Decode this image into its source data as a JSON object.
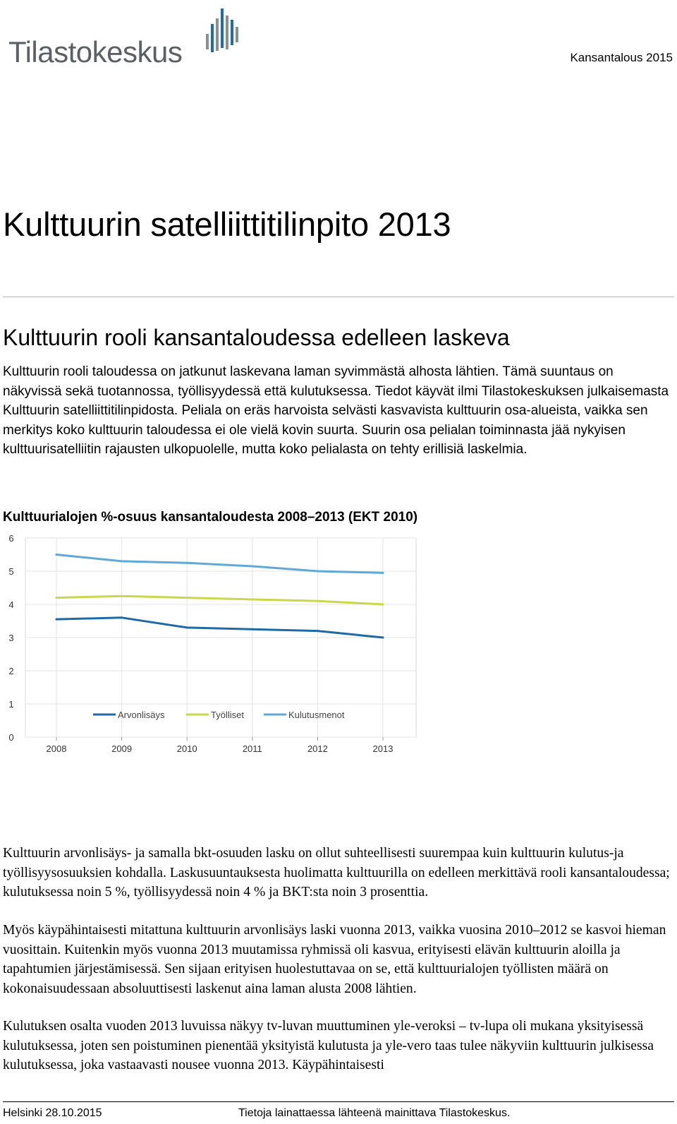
{
  "logo": {
    "text": "Tilastokeskus"
  },
  "header": {
    "series": "Kansantalous 2015"
  },
  "title": "Kulttuurin satelliittitilinpito 2013",
  "section_heading": "Kulttuurin rooli kansantaloudessa edelleen laskeva",
  "lead": "Kulttuurin rooli taloudessa on jatkunut laskevana laman syvimmästä alhosta lähtien. Tämä suuntaus on näkyvissä sekä tuotannossa, työllisyydessä että kulutuksessa. Tiedot käyvät ilmi Tilastokeskuksen julkaisemasta Kulttuurin satelliittitilinpidosta. Peliala on eräs harvoista selvästi kasvavista kulttuurin osa-alueista, vaikka sen merkitys koko kulttuurin taloudessa ei ole vielä kovin suurta. Suurin osa pelialan toiminnasta jää nykyisen kulttuurisatelliitin rajausten ulkopuolelle, mutta koko pelialasta on tehty erillisiä laskelmia.",
  "chart_title": "Kulttuurialojen %-osuus kansantaloudesta 2008–2013 (EKT 2010)",
  "chart_data": {
    "type": "line",
    "categories": [
      "2008",
      "2009",
      "2010",
      "2011",
      "2012",
      "2013"
    ],
    "ylim": [
      0,
      6
    ],
    "yticks": [
      "0",
      "1",
      "2",
      "3",
      "4",
      "5",
      "6"
    ],
    "grid": true,
    "legend_position": "bottom-left",
    "series": [
      {
        "name": "Arvonlisäys",
        "color": "#1f6aa5",
        "values": [
          3.55,
          3.6,
          3.3,
          3.25,
          3.2,
          3.0
        ]
      },
      {
        "name": "Työlliset",
        "color": "#c8d84a",
        "values": [
          4.2,
          4.25,
          4.2,
          4.15,
          4.1,
          4.0
        ]
      },
      {
        "name": "Kulutusmenot",
        "color": "#5fa8d8",
        "values": [
          5.5,
          5.3,
          5.25,
          5.15,
          5.0,
          4.95
        ]
      }
    ]
  },
  "paragraphs": [
    "Kulttuurin arvonlisäys- ja samalla bkt-osuuden lasku on ollut suhteellisesti suurempaa kuin kulttuurin kulutus-ja työllisyysosuuksien kohdalla. Laskusuuntauksesta huolimatta kulttuurilla on edelleen merkittävä rooli kansantaloudessa; kulutuksessa noin 5 %, työllisyydessä noin 4 % ja BKT:sta noin 3 prosenttia.",
    "Myös käypähintaisesti mitattuna kulttuurin arvonlisäys laski vuonna 2013, vaikka vuosina 2010–2012 se kasvoi hieman vuosittain. Kuitenkin myös vuonna 2013 muutamissa ryhmissä oli kasvua, erityisesti elävän kulttuurin aloilla ja tapahtumien järjestämisessä. Sen sijaan erityisen huolestuttavaa on se, että kulttuurialojen työllisten määrä on kokonaisuudessaan absoluuttisesti laskenut aina laman alusta 2008 lähtien.",
    "Kulutuksen osalta vuoden 2013 luvuissa näkyy tv-luvan muuttuminen yle-veroksi – tv-lupa oli mukana yksityisessä kulutuksessa, joten sen poistuminen pienentää yksityistä kulutusta ja yle-vero taas tulee näkyviin kulttuurin julkisessa kulutuksessa, joka vastaavasti nousee vuonna 2013. Käypähintaisesti"
  ],
  "footer": {
    "left": "Helsinki 28.10.2015",
    "right": "Tietoja lainattaessa lähteenä mainittava Tilastokeskus."
  }
}
